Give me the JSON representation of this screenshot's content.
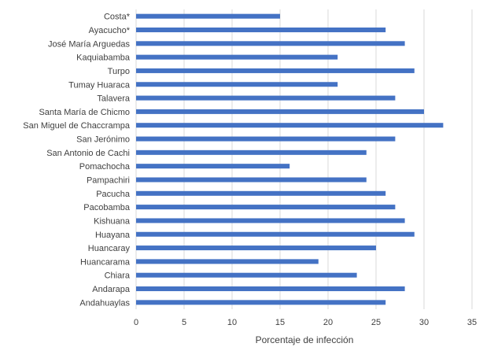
{
  "chart_data": {
    "type": "bar",
    "orientation": "horizontal",
    "xlabel": "Porcentaje de infección",
    "ylabel": "",
    "xlim": [
      0,
      35
    ],
    "xticks": [
      0,
      5,
      10,
      15,
      20,
      25,
      30,
      35
    ],
    "grid": "vertical",
    "bar_color": "#4472c4",
    "categories": [
      "Costa*",
      "Ayacucho*",
      "José María Arguedas",
      "Kaquiabamba",
      "Turpo",
      "Tumay Huaraca",
      "Talavera",
      "Santa María de Chicmo",
      "San Miguel de Chaccrampa",
      "San Jerónimo",
      "San Antonio de Cachi",
      "Pomachocha",
      "Pampachiri",
      "Pacucha",
      "Pacobamba",
      "Kishuana",
      "Huayana",
      "Huancaray",
      "Huancarama",
      "Chiara",
      "Andarapa",
      "Andahuaylas"
    ],
    "values": [
      15,
      26,
      28,
      21,
      29,
      21,
      27,
      30,
      32,
      27,
      24,
      16,
      24,
      26,
      27,
      28,
      29,
      25,
      19,
      23,
      28,
      26
    ]
  }
}
